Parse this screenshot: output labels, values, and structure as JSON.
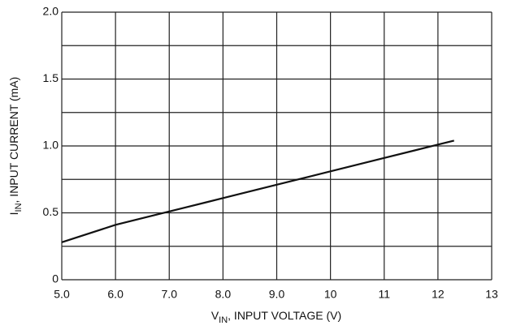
{
  "chart_data": {
    "type": "line",
    "xlabel": {
      "symbol": "V",
      "subscript": "IN",
      "text": ", INPUT VOLTAGE (V)"
    },
    "ylabel": {
      "symbol": "I",
      "subscript": "IN",
      "text": ", INPUT CURRENT (mA)"
    },
    "x": [
      5.0,
      6.0,
      7.0,
      8.0,
      9.0,
      10,
      11,
      12,
      12.3
    ],
    "series": [
      {
        "color": "#111111",
        "values": [
          0.28,
          0.41,
          0.51,
          0.61,
          0.71,
          0.81,
          0.91,
          1.01,
          1.04
        ]
      }
    ],
    "xlim": [
      5,
      13
    ],
    "xticks": [
      {
        "value": 5,
        "label": "5.0"
      },
      {
        "value": 6,
        "label": "6.0"
      },
      {
        "value": 7,
        "label": "7.0"
      },
      {
        "value": 8,
        "label": "8.0"
      },
      {
        "value": 9,
        "label": "9.0"
      },
      10,
      11,
      12,
      13
    ],
    "ylim": [
      0,
      2
    ],
    "yticks": [
      0,
      0.5,
      {
        "value": 1,
        "label": "1.0"
      },
      1.5,
      {
        "value": 2,
        "label": "2.0"
      }
    ],
    "yminorticks": [
      0.25,
      0.75,
      1.25,
      1.75
    ],
    "grid": true
  }
}
